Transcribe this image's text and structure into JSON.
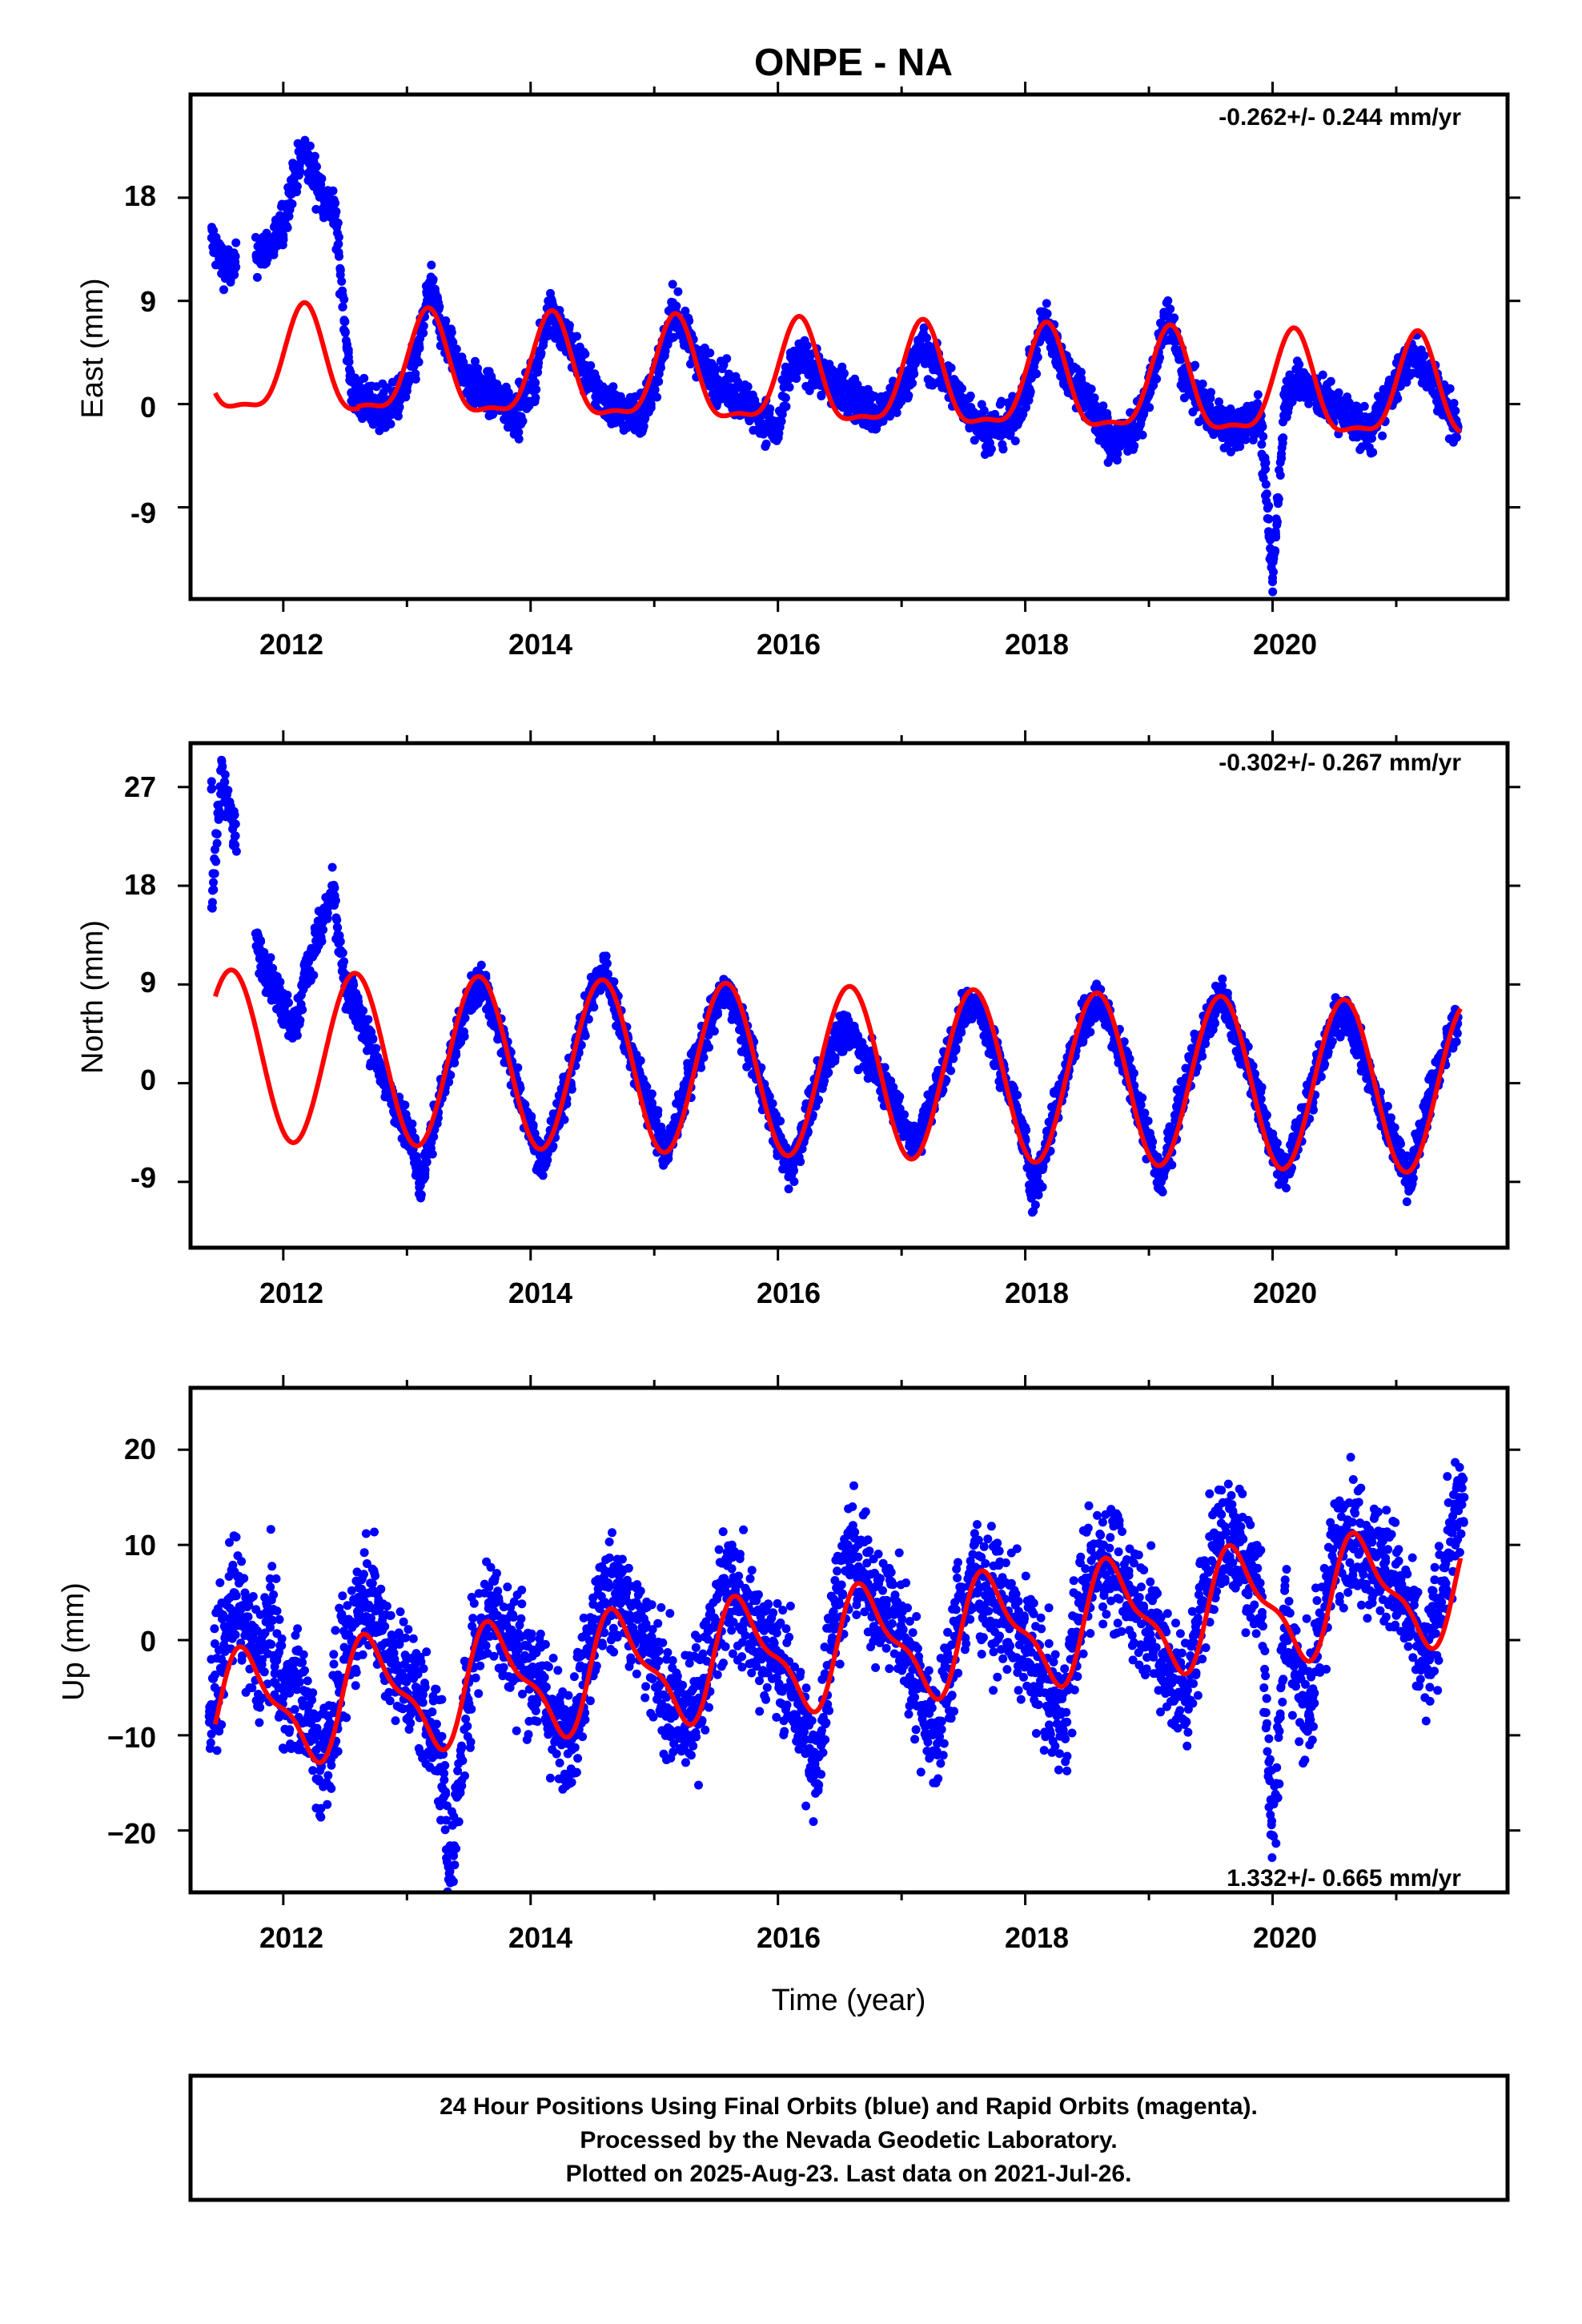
{
  "title": "ONPE - NA",
  "xlabel": "Time (year)",
  "footer": {
    "line1": "24 Hour Positions Using Final Orbits (blue) and Rapid Orbits (magenta).",
    "line2": "Processed by the Nevada Geodetic Laboratory.",
    "line3": "Plotted on 2025-Aug-23. Last data on 2021-Jul-26."
  },
  "colors": {
    "final_orbits": "#0000ff",
    "model": "#ff0000",
    "frame": "#000000"
  },
  "chart_data": [
    {
      "type": "scatter",
      "component": "east",
      "ylabel": "East (mm)",
      "rate_text": "-0.262+/- 0.244 mm/yr",
      "rate_position": "top-right",
      "xlim": [
        2011.25,
        2021.9
      ],
      "ylim": [
        -17,
        27
      ],
      "xticks": [
        "2012",
        "2014",
        "2016",
        "2018",
        "2020"
      ],
      "xtick_values": [
        2012,
        2014,
        2016,
        2018,
        2020
      ],
      "yticks": [
        "-9",
        "0",
        "9",
        "18"
      ],
      "ytick_values": [
        -9,
        0,
        9,
        18
      ],
      "grid": false,
      "series": [
        {
          "points": [
            [
              2011.42,
              14.5
            ],
            [
              2011.5,
              12.5
            ],
            [
              2011.58,
              11.8
            ],
            [
              2011.92,
              14.0
            ],
            [
              2012.0,
              15.5
            ],
            [
              2012.08,
              19.5
            ],
            [
              2012.17,
              22.0
            ],
            [
              2012.25,
              20.0
            ],
            [
              2012.33,
              18.0
            ],
            [
              2012.42,
              16.5
            ],
            [
              2012.55,
              1.0
            ],
            [
              2012.7,
              0.0
            ],
            [
              2012.85,
              -0.5
            ],
            [
              2013.0,
              1.5
            ],
            [
              2013.1,
              5.0
            ],
            [
              2013.18,
              10.5
            ],
            [
              2013.3,
              6.0
            ],
            [
              2013.5,
              2.0
            ],
            [
              2013.7,
              0.5
            ],
            [
              2013.9,
              -1.0
            ],
            [
              2014.05,
              3.0
            ],
            [
              2014.15,
              8.5
            ],
            [
              2014.3,
              5.5
            ],
            [
              2014.5,
              1.5
            ],
            [
              2014.7,
              -0.5
            ],
            [
              2014.9,
              -1.0
            ],
            [
              2015.05,
              3.5
            ],
            [
              2015.15,
              8.5
            ],
            [
              2015.3,
              5.0
            ],
            [
              2015.5,
              2.0
            ],
            [
              2015.7,
              0.5
            ],
            [
              2016.0,
              -2.5
            ],
            [
              2016.1,
              3.0
            ],
            [
              2016.2,
              4.0
            ],
            [
              2016.4,
              2.0
            ],
            [
              2016.6,
              0.5
            ],
            [
              2016.8,
              -1.0
            ],
            [
              2017.0,
              1.0
            ],
            [
              2017.15,
              5.0
            ],
            [
              2017.3,
              3.0
            ],
            [
              2017.5,
              0.0
            ],
            [
              2017.7,
              -2.5
            ],
            [
              2017.9,
              -1.5
            ],
            [
              2018.05,
              2.5
            ],
            [
              2018.15,
              7.5
            ],
            [
              2018.3,
              3.5
            ],
            [
              2018.5,
              0.5
            ],
            [
              2018.7,
              -3.5
            ],
            [
              2018.9,
              -2.0
            ],
            [
              2019.05,
              3.0
            ],
            [
              2019.15,
              8.0
            ],
            [
              2019.3,
              2.0
            ],
            [
              2019.5,
              -1.0
            ],
            [
              2019.7,
              -2.5
            ],
            [
              2019.9,
              -1.0
            ],
            [
              2020.0,
              -15.5
            ],
            [
              2020.1,
              1.0
            ],
            [
              2020.2,
              2.0
            ],
            [
              2020.4,
              0.5
            ],
            [
              2020.6,
              -1.0
            ],
            [
              2020.8,
              -2.5
            ],
            [
              2021.0,
              2.0
            ],
            [
              2021.15,
              4.5
            ],
            [
              2021.3,
              2.0
            ],
            [
              2021.5,
              -2.0
            ]
          ]
        }
      ]
    },
    {
      "type": "scatter",
      "component": "north",
      "ylabel": "North (mm)",
      "rate_text": "-0.302+/- 0.267 mm/yr",
      "rate_position": "top-right",
      "xlim": [
        2011.25,
        2021.9
      ],
      "ylim": [
        -15,
        31
      ],
      "xticks": [
        "2012",
        "2014",
        "2016",
        "2018",
        "2020"
      ],
      "xtick_values": [
        2012,
        2014,
        2016,
        2018,
        2020
      ],
      "yticks": [
        "-9",
        "0",
        "9",
        "18",
        "27"
      ],
      "ytick_values": [
        -9,
        0,
        9,
        18,
        27
      ],
      "grid": false,
      "series": [
        {
          "points": [
            [
              2011.42,
              27.5
            ],
            [
              2011.5,
              28.5
            ],
            [
              2011.42,
              16.0
            ],
            [
              2011.8,
              12.0
            ],
            [
              2011.9,
              9.5
            ],
            [
              2012.0,
              7.0
            ],
            [
              2012.1,
              5.0
            ],
            [
              2012.2,
              11.0
            ],
            [
              2012.3,
              14.0
            ],
            [
              2012.4,
              17.5
            ],
            [
              2012.5,
              8.5
            ],
            [
              2012.6,
              7.0
            ],
            [
              2012.75,
              2.0
            ],
            [
              2012.9,
              -2.0
            ],
            [
              2013.05,
              -5.0
            ],
            [
              2013.1,
              -9.5
            ],
            [
              2013.3,
              0.0
            ],
            [
              2013.5,
              7.5
            ],
            [
              2013.6,
              9.5
            ],
            [
              2013.8,
              3.0
            ],
            [
              2014.0,
              -4.0
            ],
            [
              2014.1,
              -7.5
            ],
            [
              2014.3,
              0.0
            ],
            [
              2014.5,
              8.5
            ],
            [
              2014.6,
              10.5
            ],
            [
              2014.8,
              3.0
            ],
            [
              2015.0,
              -3.5
            ],
            [
              2015.1,
              -6.5
            ],
            [
              2015.3,
              1.0
            ],
            [
              2015.5,
              7.0
            ],
            [
              2015.6,
              8.5
            ],
            [
              2015.8,
              2.0
            ],
            [
              2016.0,
              -5.0
            ],
            [
              2016.1,
              -8.0
            ],
            [
              2016.3,
              -1.0
            ],
            [
              2016.5,
              5.0
            ],
            [
              2016.6,
              4.5
            ],
            [
              2016.8,
              1.0
            ],
            [
              2017.0,
              -3.0
            ],
            [
              2017.1,
              -6.0
            ],
            [
              2017.3,
              0.0
            ],
            [
              2017.5,
              6.5
            ],
            [
              2017.6,
              7.5
            ],
            [
              2017.8,
              1.5
            ],
            [
              2018.0,
              -5.0
            ],
            [
              2018.05,
              -10.5
            ],
            [
              2018.3,
              0.0
            ],
            [
              2018.5,
              6.5
            ],
            [
              2018.6,
              7.5
            ],
            [
              2018.8,
              2.0
            ],
            [
              2019.0,
              -5.5
            ],
            [
              2019.1,
              -9.0
            ],
            [
              2019.3,
              0.5
            ],
            [
              2019.5,
              6.0
            ],
            [
              2019.6,
              8.0
            ],
            [
              2019.8,
              1.5
            ],
            [
              2020.0,
              -6.0
            ],
            [
              2020.1,
              -8.5
            ],
            [
              2020.3,
              -1.0
            ],
            [
              2020.5,
              5.5
            ],
            [
              2020.6,
              6.5
            ],
            [
              2020.8,
              0.0
            ],
            [
              2021.0,
              -6.0
            ],
            [
              2021.1,
              -9.0
            ],
            [
              2021.3,
              0.0
            ],
            [
              2021.5,
              6.0
            ]
          ]
        }
      ]
    },
    {
      "type": "scatter",
      "component": "up",
      "ylabel": "Up (mm)",
      "rate_text": "1.332+/- 0.665 mm/yr",
      "rate_position": "bottom-right",
      "xlim": [
        2011.25,
        2021.9
      ],
      "ylim": [
        -26.5,
        26.5
      ],
      "xticks": [
        "2012",
        "2014",
        "2016",
        "2018",
        "2020"
      ],
      "xtick_values": [
        2012,
        2014,
        2016,
        2018,
        2020
      ],
      "yticks": [
        "−20",
        "−10",
        "0",
        "10",
        "20"
      ],
      "ytick_values": [
        -20,
        -10,
        0,
        10,
        20
      ],
      "grid": false,
      "series": [
        {
          "points": [
            [
              2011.4,
              -8.0
            ],
            [
              2011.5,
              -2.0
            ],
            [
              2011.6,
              5.0
            ],
            [
              2011.7,
              1.0
            ],
            [
              2011.8,
              -3.0
            ],
            [
              2011.9,
              3.0
            ],
            [
              2012.0,
              -6.0
            ],
            [
              2012.1,
              -4.0
            ],
            [
              2012.2,
              -8.0
            ],
            [
              2012.3,
              -13.0
            ],
            [
              2012.4,
              -9.0
            ],
            [
              2012.5,
              -2.0
            ],
            [
              2012.6,
              3.0
            ],
            [
              2012.7,
              5.0
            ],
            [
              2012.8,
              1.0
            ],
            [
              2012.9,
              -2.0
            ],
            [
              2013.0,
              -4.0
            ],
            [
              2013.1,
              -6.0
            ],
            [
              2013.2,
              -9.0
            ],
            [
              2013.3,
              -14.0
            ],
            [
              2013.35,
              -25.5
            ],
            [
              2013.5,
              -4.0
            ],
            [
              2013.6,
              2.0
            ],
            [
              2013.7,
              4.0
            ],
            [
              2013.8,
              0.0
            ],
            [
              2013.9,
              -1.0
            ],
            [
              2014.0,
              -3.0
            ],
            [
              2014.1,
              -5.0
            ],
            [
              2014.25,
              -11.0
            ],
            [
              2014.4,
              -6.0
            ],
            [
              2014.5,
              1.0
            ],
            [
              2014.6,
              4.0
            ],
            [
              2014.7,
              6.0
            ],
            [
              2014.8,
              2.0
            ],
            [
              2014.9,
              0.0
            ],
            [
              2015.0,
              -3.0
            ],
            [
              2015.1,
              -6.0
            ],
            [
              2015.25,
              -9.0
            ],
            [
              2015.4,
              -4.0
            ],
            [
              2015.5,
              2.0
            ],
            [
              2015.6,
              6.0
            ],
            [
              2015.7,
              3.0
            ],
            [
              2015.9,
              0.0
            ],
            [
              2016.0,
              -2.0
            ],
            [
              2016.1,
              -5.0
            ],
            [
              2016.2,
              -9.0
            ],
            [
              2016.3,
              -15.0
            ],
            [
              2016.45,
              3.0
            ],
            [
              2016.6,
              9.0
            ],
            [
              2016.7,
              7.0
            ],
            [
              2016.8,
              4.0
            ],
            [
              2016.9,
              3.0
            ],
            [
              2017.0,
              1.0
            ],
            [
              2017.2,
              -7.0
            ],
            [
              2017.3,
              -10.0
            ],
            [
              2017.45,
              2.0
            ],
            [
              2017.6,
              7.0
            ],
            [
              2017.7,
              5.0
            ],
            [
              2017.8,
              3.0
            ],
            [
              2017.9,
              2.0
            ],
            [
              2018.0,
              0.0
            ],
            [
              2018.2,
              -6.0
            ],
            [
              2018.3,
              -9.0
            ],
            [
              2018.45,
              4.0
            ],
            [
              2018.6,
              9.0
            ],
            [
              2018.7,
              8.0
            ],
            [
              2018.8,
              6.0
            ],
            [
              2018.9,
              4.0
            ],
            [
              2019.0,
              2.0
            ],
            [
              2019.2,
              -4.0
            ],
            [
              2019.3,
              -6.0
            ],
            [
              2019.45,
              6.0
            ],
            [
              2019.6,
              11.0
            ],
            [
              2019.7,
              10.0
            ],
            [
              2019.8,
              8.0
            ],
            [
              2019.9,
              6.0
            ],
            [
              2020.0,
              -20.5
            ],
            [
              2020.1,
              3.0
            ],
            [
              2020.2,
              -4.0
            ],
            [
              2020.3,
              -7.0
            ],
            [
              2020.45,
              6.0
            ],
            [
              2020.6,
              12.0
            ],
            [
              2020.7,
              11.0
            ],
            [
              2020.8,
              9.0
            ],
            [
              2020.9,
              8.0
            ],
            [
              2021.0,
              6.0
            ],
            [
              2021.1,
              2.0
            ],
            [
              2021.25,
              -3.0
            ],
            [
              2021.4,
              8.0
            ],
            [
              2021.55,
              15.0
            ]
          ]
        }
      ]
    }
  ]
}
